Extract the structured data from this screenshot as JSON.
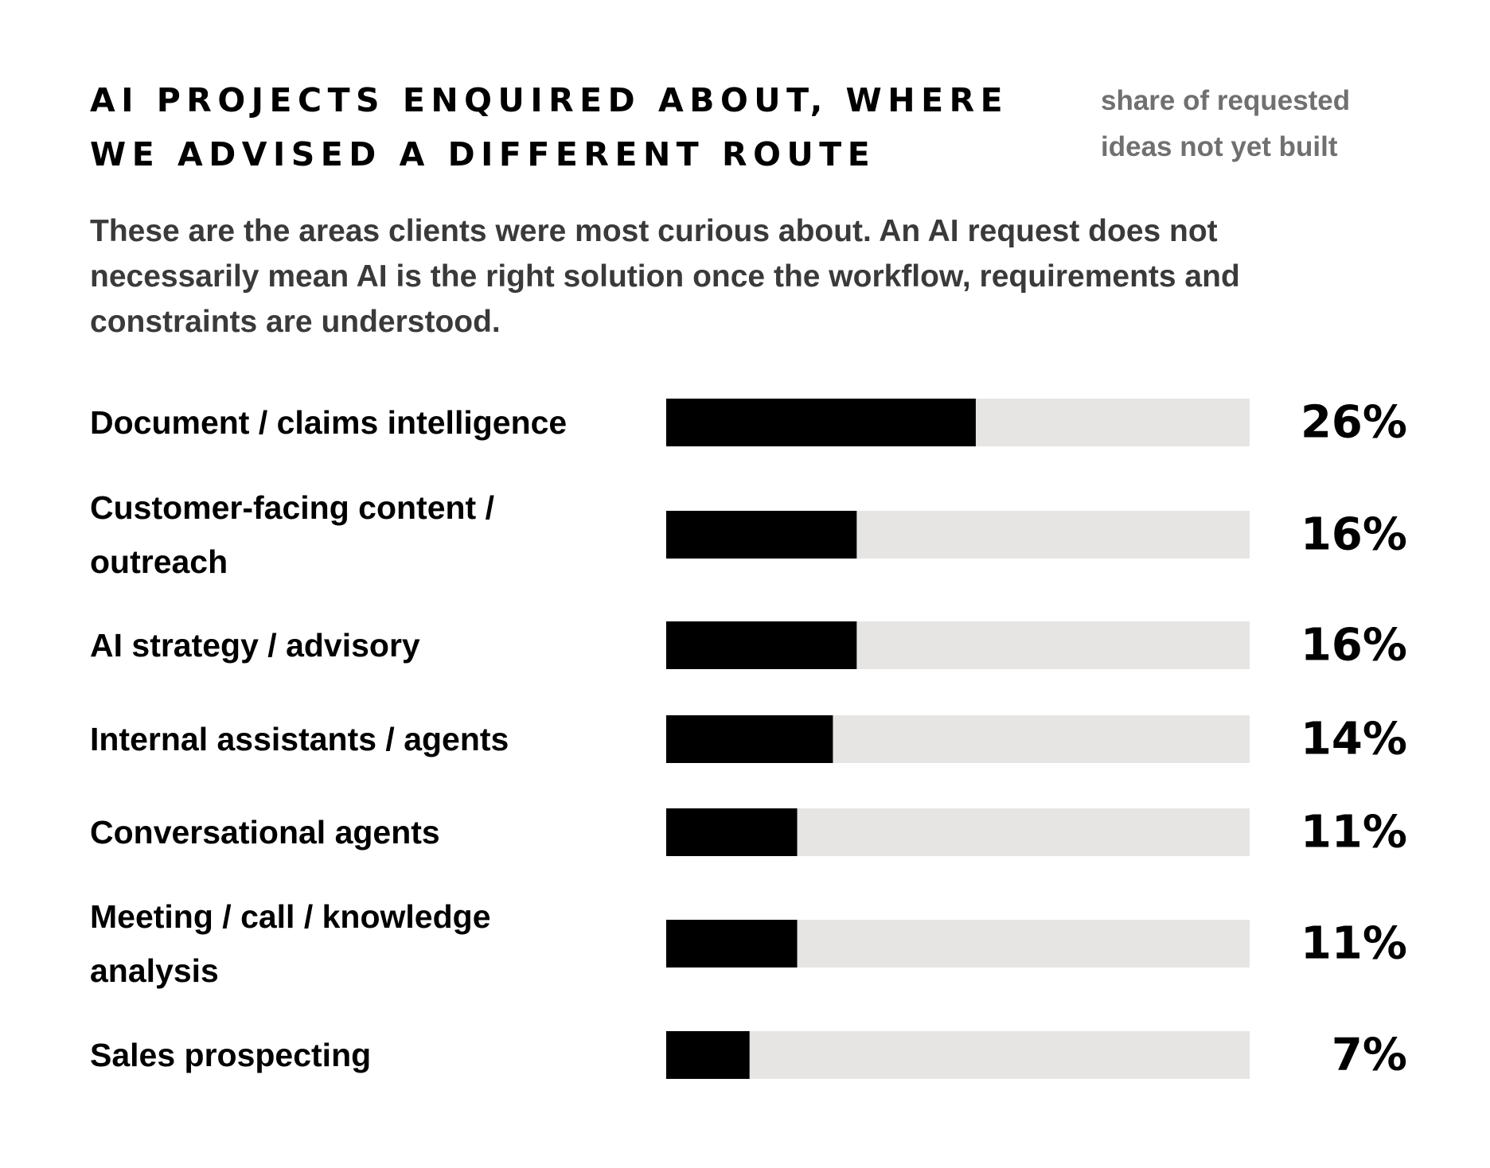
{
  "title": "AI projects enquired about, where we advised a different route",
  "measure_note": "share of requested ideas not yet built",
  "subtitle": "These are the areas clients were most curious about. An AI request does not necessarily mean AI is the right solution once the workflow, requirements and constraints are understood.",
  "colors": {
    "bar_fill": "#000000",
    "bar_track": "#e6e5e3",
    "note_text": "#707070",
    "subtitle_text": "#3a3a3a"
  },
  "chart_data": {
    "type": "bar",
    "orientation": "horizontal",
    "categories": [
      "Document / claims intelligence",
      "Customer-facing content / outreach",
      "AI strategy / advisory",
      "Internal assistants / agents",
      "Conversational agents",
      "Meeting / call / knowledge analysis",
      "Sales prospecting"
    ],
    "values": [
      26,
      16,
      16,
      14,
      11,
      11,
      7
    ],
    "value_labels": [
      "26%",
      "16%",
      "16%",
      "14%",
      "11%",
      "11%",
      "7%"
    ],
    "unit": "%",
    "xlim": [
      0,
      49
    ],
    "grid": false,
    "legend": "none"
  }
}
